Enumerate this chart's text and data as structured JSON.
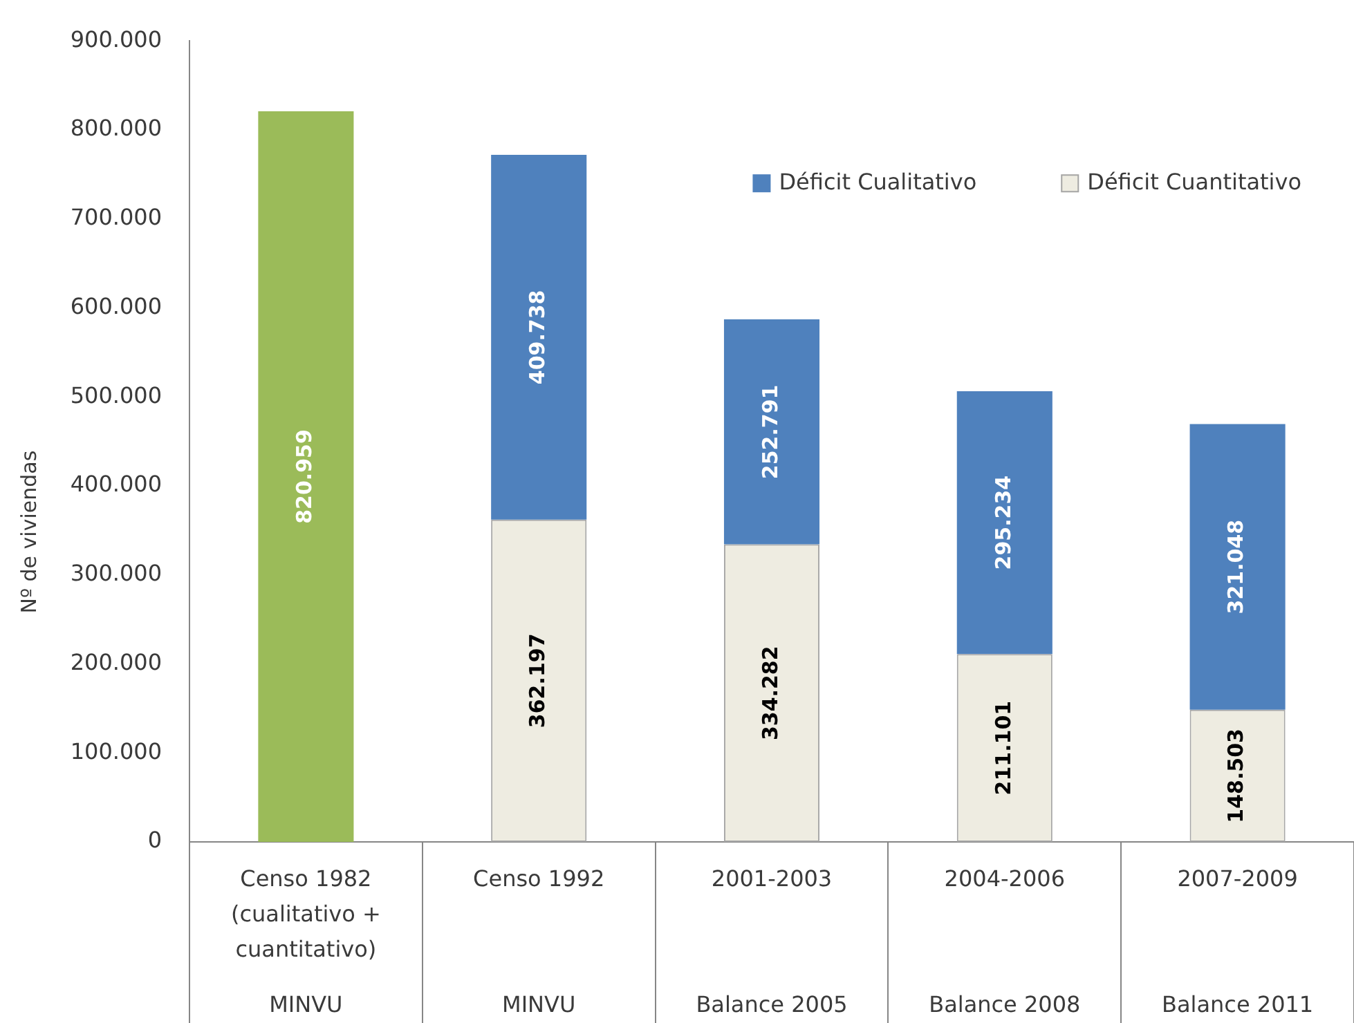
{
  "chart_data": {
    "type": "bar",
    "stacked": true,
    "categories": [
      "Censo 1982 (cualitativo + cuantitativo)",
      "Censo 1992",
      "2001-2003",
      "2004-2006",
      "2007-2009"
    ],
    "series": [
      {
        "color": "#9bbb59",
        "values": [
          820959,
          null,
          null,
          null,
          null
        ],
        "value_labels": [
          "820.959",
          null,
          null,
          null,
          null
        ]
      },
      {
        "name": "Déficit Cuantitativo",
        "color": "#eeece1",
        "values": [
          null,
          362197,
          334282,
          211101,
          148503
        ],
        "value_labels": [
          null,
          "362.197",
          "334.282",
          "211.101",
          "148.503"
        ]
      },
      {
        "name": "Déficit Cualitativo",
        "color": "#4f81bd",
        "values": [
          null,
          409738,
          252791,
          295234,
          321048
        ],
        "value_labels": [
          null,
          "409.738",
          "252.791",
          "295.234",
          "321.048"
        ]
      }
    ],
    "ylabel": "Nº de viviendas",
    "ylim": [
      0,
      900000
    ],
    "yticks": [
      0,
      {
        "value": 100000,
        "label": "100.000"
      },
      {
        "value": 200000,
        "label": "200.000"
      },
      {
        "value": 300000,
        "label": "300.000"
      },
      {
        "value": 400000,
        "label": "400.000"
      },
      {
        "value": 500000,
        "label": "500.000"
      },
      {
        "value": 600000,
        "label": "600.000"
      },
      {
        "value": 700000,
        "label": "700.000"
      },
      {
        "value": 800000,
        "label": "800.000"
      },
      {
        "value": 900000,
        "label": "900.000"
      }
    ],
    "legend": "top right",
    "annotations": [
      "MINVU",
      "MINVU",
      "Balance 2005",
      "Balance 2008",
      "Balance 2011"
    ]
  }
}
